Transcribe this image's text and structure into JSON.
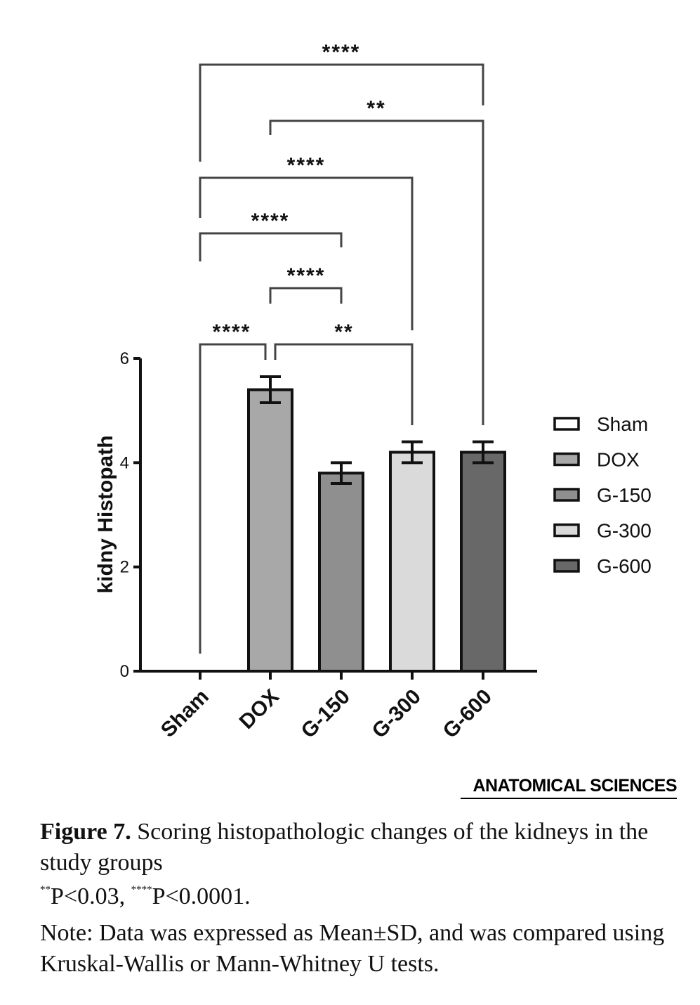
{
  "chart_data": {
    "type": "bar",
    "categories": [
      "Sham",
      "DOX",
      "G-150",
      "G-300",
      "G-600"
    ],
    "values": [
      0,
      5.4,
      3.8,
      4.2,
      4.2
    ],
    "errors": [
      0,
      0.25,
      0.2,
      0.2,
      0.2
    ],
    "colors": [
      "#ffffff",
      "#a8a8a8",
      "#8f8f8f",
      "#dadada",
      "#686868"
    ],
    "ylabel": "kidny Histopath",
    "xlabel": "",
    "ylim": [
      0,
      6
    ],
    "yticks": [
      "0",
      "2",
      "4",
      "6"
    ],
    "yticks_values": [
      0,
      2,
      4,
      6
    ],
    "legend": {
      "placement": "right",
      "entries": [
        "Sham",
        "DOX",
        "G-150",
        "G-300",
        "G-600"
      ]
    },
    "grid": false,
    "significance": [
      {
        "from": "Sham",
        "to": "DOX",
        "label": "****"
      },
      {
        "from": "DOX",
        "to": "G-300",
        "label": "**"
      },
      {
        "from": "DOX",
        "to": "G-150",
        "label": "****"
      },
      {
        "from": "Sham",
        "to": "G-150",
        "label": "****"
      },
      {
        "from": "Sham",
        "to": "G-300",
        "label": "****"
      },
      {
        "from": "DOX",
        "to": "G-600",
        "label": "**"
      },
      {
        "from": "Sham",
        "to": "G-600",
        "label": "****"
      }
    ]
  },
  "brand": "ANATOMICAL SCIENCES",
  "caption": {
    "label": "Figure 7.",
    "text": "Scoring histopathologic changes of the kidneys in the study groups",
    "pvalue_1_marker": "**",
    "pvalue_1_text": "P<0.03, ",
    "pvalue_2_marker": "****",
    "pvalue_2_text": "P<0.0001.",
    "note": "Note: Data was expressed as Mean±SD, and was compared using Kruskal-Wallis or Mann-Whitney U tests."
  }
}
